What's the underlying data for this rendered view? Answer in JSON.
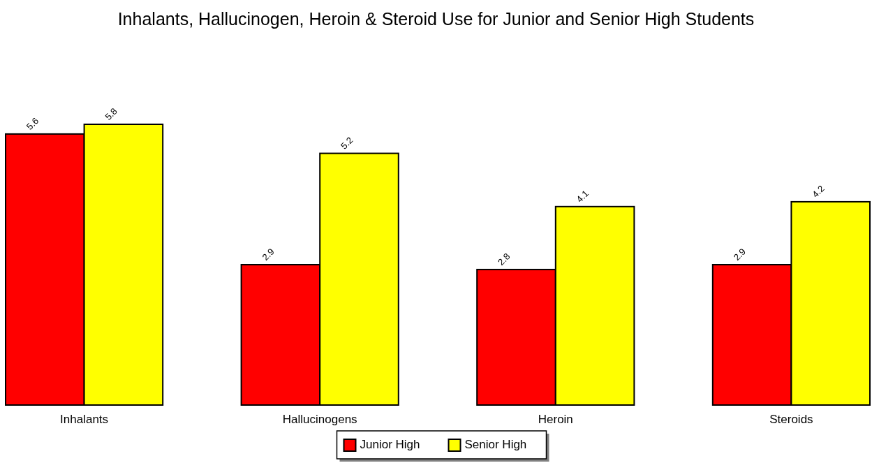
{
  "chart_data": {
    "type": "bar",
    "title": "Inhalants, Hallucinogen, Heroin & Steroid Use for Junior and Senior High Students",
    "categories": [
      "Inhalants",
      "Hallucinogens",
      "Heroin",
      "Steroids"
    ],
    "series": [
      {
        "name": "Junior High",
        "color": "#ff0000",
        "values": [
          5.6,
          2.9,
          2.8,
          2.9
        ]
      },
      {
        "name": "Senior High",
        "color": "#ffff00",
        "values": [
          5.8,
          5.2,
          4.1,
          4.2
        ]
      }
    ],
    "data_labels": true,
    "legend": "bottom"
  }
}
